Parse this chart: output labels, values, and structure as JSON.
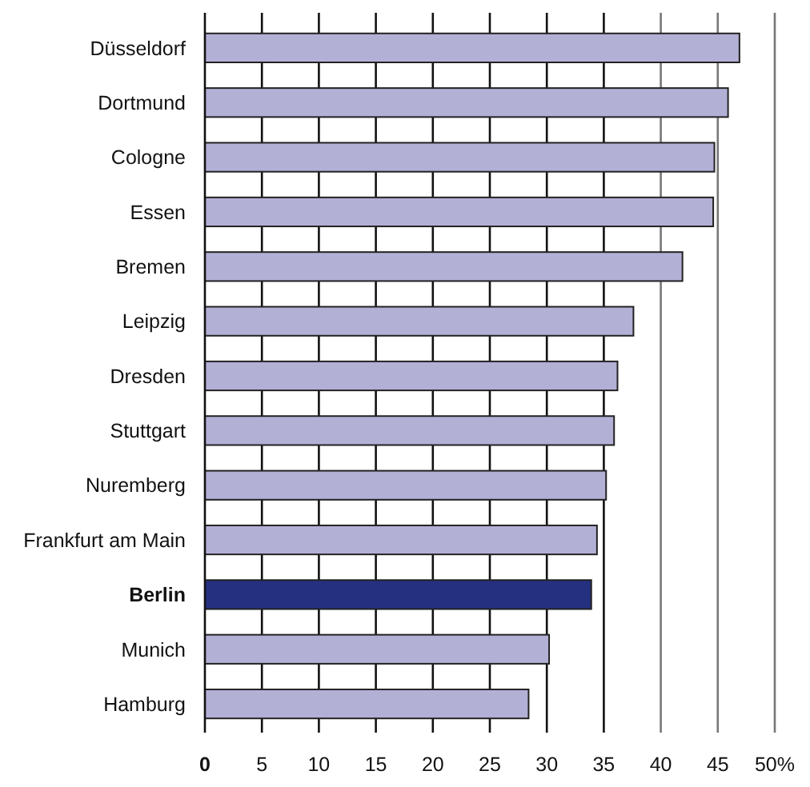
{
  "chart_data": {
    "type": "bar",
    "orientation": "horizontal",
    "categories": [
      "Düsseldorf",
      "Dortmund",
      "Cologne",
      "Essen",
      "Bremen",
      "Leipzig",
      "Dresden",
      "Stuttgart",
      "Nuremberg",
      "Frankfurt am Main",
      "Berlin",
      "Munich",
      "Hamburg"
    ],
    "values": [
      46.9,
      45.9,
      44.7,
      44.6,
      41.9,
      37.6,
      36.2,
      35.9,
      35.2,
      34.4,
      33.9,
      30.2,
      28.4
    ],
    "colors": [
      "#b3b0d6",
      "#b3b0d6",
      "#b3b0d6",
      "#b3b0d6",
      "#b3b0d6",
      "#b3b0d6",
      "#b3b0d6",
      "#b3b0d6",
      "#b3b0d6",
      "#b3b0d6",
      "#253080",
      "#b3b0d6",
      "#b3b0d6"
    ],
    "xlim": [
      0,
      50
    ],
    "xticks": [
      0,
      5,
      10,
      15,
      20,
      25,
      30,
      35,
      40,
      45,
      {
        "value": 50,
        "label": "50%"
      }
    ],
    "grid": "x"
  }
}
